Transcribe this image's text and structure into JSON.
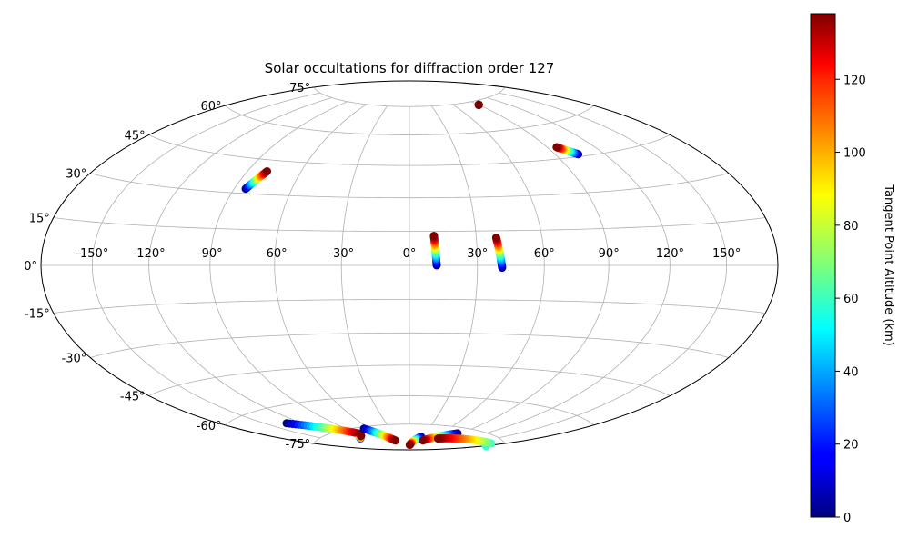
{
  "chart_data": {
    "type": "scatter",
    "projection": "hammer",
    "title": "Solar occultations for diffraction order 127",
    "grid": true,
    "lon_ticks": [
      -150,
      -120,
      -90,
      -60,
      -30,
      0,
      30,
      60,
      90,
      120,
      150
    ],
    "lon_tick_labels": [
      "-150°",
      "-120°",
      "-90°",
      "-60°",
      "-30°",
      "0°",
      "30°",
      "60°",
      "90°",
      "120°",
      "150°"
    ],
    "lat_ticks": [
      75,
      60,
      45,
      30,
      15,
      0,
      -15,
      -30,
      -45,
      -60,
      -75
    ],
    "lat_tick_labels": [
      "75°",
      "60°",
      "45°",
      "30°",
      "15°",
      "0°",
      "-15°",
      "-30°",
      "-45°",
      "-60°",
      "-75°"
    ],
    "colorbar": {
      "label": "Tangent Point Altitude (km)",
      "min": 0,
      "max": 138,
      "ticks": [
        0,
        20,
        40,
        60,
        80,
        100,
        120
      ],
      "tick_labels": [
        "0",
        "20",
        "40",
        "60",
        "80",
        "100",
        "120"
      ],
      "colormap": "jet"
    },
    "series": [
      {
        "lon_start": -84.0,
        "lat_start": 32.0,
        "lon_end": -79.0,
        "lat_end": 40.0,
        "alt_start": 0,
        "alt_end": 138
      },
      {
        "lon_start": 12.0,
        "lat_start": 0.0,
        "lon_end": 11.0,
        "lat_end": 13.0,
        "alt_start": 0,
        "alt_end": 138
      },
      {
        "lon_start": 41.0,
        "lat_start": -1.0,
        "lon_end": 39.0,
        "lat_end": 12.0,
        "alt_start": 0,
        "alt_end": 138
      },
      {
        "lon_start": 104.0,
        "lat_start": 46.0,
        "lon_end": 96.0,
        "lat_end": 50.0,
        "alt_start": 0,
        "alt_end": 138
      },
      {
        "lon_start": 90.0,
        "lat_start": 73.0,
        "lon_end": 90.0,
        "lat_end": 73.0,
        "alt_start": 138,
        "alt_end": 138
      },
      {
        "lon_start": -133.0,
        "lat_start": -67.0,
        "lon_end": -88.0,
        "lat_end": -78.0,
        "alt_start": 0,
        "alt_end": 138
      },
      {
        "lon_start": -107.0,
        "lat_start": -80.0,
        "lon_end": -94.0,
        "lat_end": -79.0,
        "alt_start": 0,
        "alt_end": 138
      },
      {
        "lon_start": -68.0,
        "lat_start": -76.0,
        "lon_end": -45.0,
        "lat_end": -84.0,
        "alt_start": 0,
        "alt_end": 138
      },
      {
        "lon_start": 28.0,
        "lat_start": -82.0,
        "lon_end": 2.0,
        "lat_end": -87.0,
        "alt_start": 0,
        "alt_end": 138
      },
      {
        "lon_start": 85.0,
        "lat_start": -78.0,
        "lon_end": 43.0,
        "lat_end": -84.0,
        "alt_start": 0,
        "alt_end": 138
      },
      {
        "lon_start": 180.0,
        "lat_start": -78.0,
        "lon_end": 180.0,
        "lat_end": -78.0,
        "alt_start": 60,
        "alt_end": 60
      },
      {
        "lon_start": 170.0,
        "lat_start": -77.0,
        "lon_end": 72.0,
        "lat_end": -82.0,
        "alt_start": 60,
        "alt_end": 138
      }
    ]
  }
}
